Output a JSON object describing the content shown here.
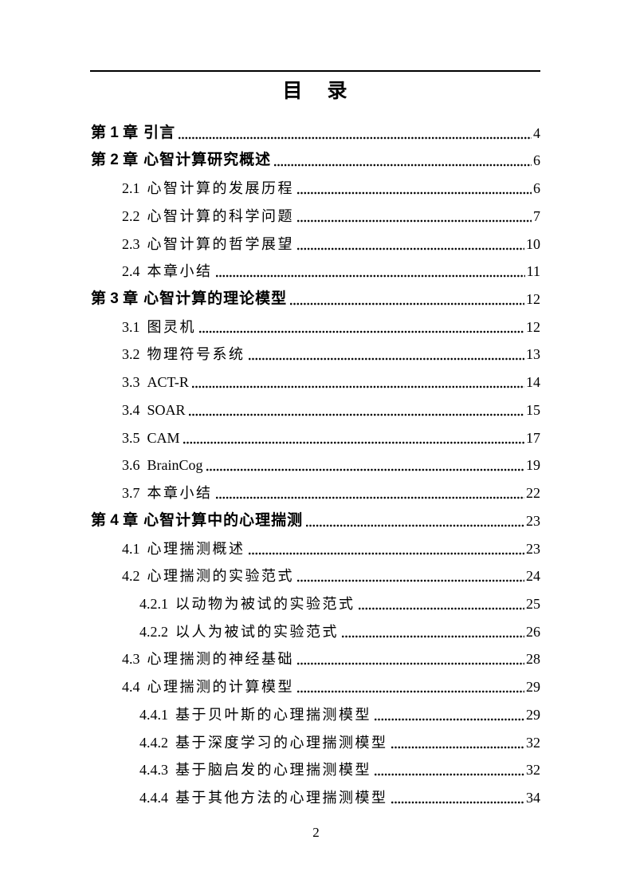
{
  "document": {
    "title": "目　录",
    "footer_page_number": "2"
  },
  "toc": {
    "entries": [
      {
        "level": 1,
        "num": "第 1 章",
        "text": "引言",
        "page": "4"
      },
      {
        "level": 1,
        "num": "第 2 章",
        "text": "心智计算研究概述",
        "page": "6"
      },
      {
        "level": 2,
        "num": "2.1",
        "text": "心智计算的发展历程",
        "page": "6"
      },
      {
        "level": 2,
        "num": "2.2",
        "text": "心智计算的科学问题",
        "page": "7"
      },
      {
        "level": 2,
        "num": "2.3",
        "text": "心智计算的哲学展望",
        "page": "10"
      },
      {
        "level": 2,
        "num": "2.4",
        "text": "本章小结",
        "page": "11"
      },
      {
        "level": 1,
        "num": "第 3 章",
        "text": "心智计算的理论模型",
        "page": "12"
      },
      {
        "level": 2,
        "num": "3.1",
        "text": "图灵机",
        "page": "12"
      },
      {
        "level": 2,
        "num": "3.2",
        "text": "物理符号系统",
        "page": "13"
      },
      {
        "level": 2,
        "num": "3.3",
        "text": "ACT-R",
        "page": "14"
      },
      {
        "level": 2,
        "num": "3.4",
        "text": "SOAR",
        "page": "15"
      },
      {
        "level": 2,
        "num": "3.5",
        "text": "CAM",
        "page": "17"
      },
      {
        "level": 2,
        "num": "3.6",
        "text": "BrainCog",
        "page": "19"
      },
      {
        "level": 2,
        "num": "3.7",
        "text": "本章小结",
        "page": "22"
      },
      {
        "level": 1,
        "num": "第 4 章",
        "text": "心智计算中的心理揣测",
        "page": "23"
      },
      {
        "level": 2,
        "num": "4.1",
        "text": "心理揣测概述",
        "page": "23"
      },
      {
        "level": 2,
        "num": "4.2",
        "text": "心理揣测的实验范式",
        "page": "24"
      },
      {
        "level": 3,
        "num": "4.2.1",
        "text": "以动物为被试的实验范式",
        "page": "25"
      },
      {
        "level": 3,
        "num": "4.2.2",
        "text": "以人为被试的实验范式",
        "page": "26"
      },
      {
        "level": 2,
        "num": "4.3",
        "text": "心理揣测的神经基础",
        "page": "28"
      },
      {
        "level": 2,
        "num": "4.4",
        "text": "心理揣测的计算模型",
        "page": "29"
      },
      {
        "level": 3,
        "num": "4.4.1",
        "text": "基于贝叶斯的心理揣测模型",
        "page": "29"
      },
      {
        "level": 3,
        "num": "4.4.2",
        "text": "基于深度学习的心理揣测模型",
        "page": "32"
      },
      {
        "level": 3,
        "num": "4.4.3",
        "text": "基于脑启发的心理揣测模型",
        "page": "32"
      },
      {
        "level": 3,
        "num": "4.4.4",
        "text": "基于其他方法的心理揣测模型",
        "page": "34"
      }
    ]
  }
}
